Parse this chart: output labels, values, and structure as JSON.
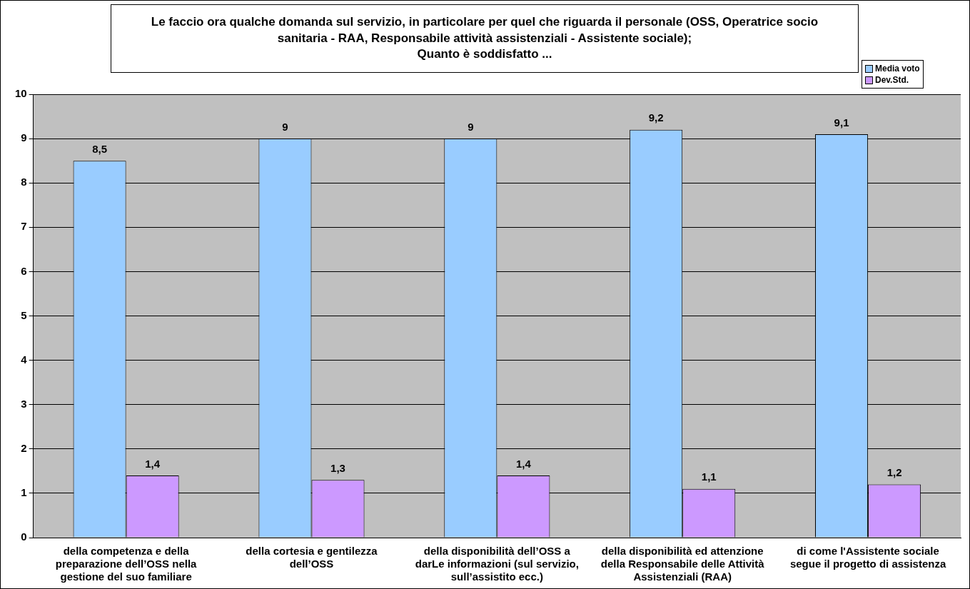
{
  "chart_data": {
    "type": "bar",
    "title": "Le faccio ora qualche domanda sul servizio, in particolare per quel che riguarda il personale (OSS, Operatrice socio sanitaria - RAA, Responsabile attività assistenziali - Assistente sociale);\nQuanto è soddisfatto ...",
    "categories": [
      "della competenza e della preparazione dell’OSS nella gestione del suo familiare",
      "della cortesia e gentilezza dell’OSS",
      "della disponibilità dell’OSS a darLe informazioni (sul servizio, sull’assistito ecc.)",
      "della disponibilità ed attenzione della Responsabile delle Attività Assistenziali (RAA)",
      "di come l'Assistente sociale segue il progetto di assistenza"
    ],
    "series": [
      {
        "name": "Media voto",
        "color": "#99ccff",
        "values": [
          8.5,
          9,
          9,
          9.2,
          9.1
        ],
        "value_labels": [
          "8,5",
          "9",
          "9",
          "9,2",
          "9,1"
        ]
      },
      {
        "name": "Dev.Std.",
        "color": "#cc99ff",
        "values": [
          1.4,
          1.3,
          1.4,
          1.1,
          1.2
        ],
        "value_labels": [
          "1,4",
          "1,3",
          "1,4",
          "1,1",
          "1,2"
        ]
      }
    ],
    "ylim": [
      0,
      10
    ],
    "yticks": [
      0,
      1,
      2,
      3,
      4,
      5,
      6,
      7,
      8,
      9,
      10
    ],
    "grid": "y",
    "legend": "top right"
  }
}
